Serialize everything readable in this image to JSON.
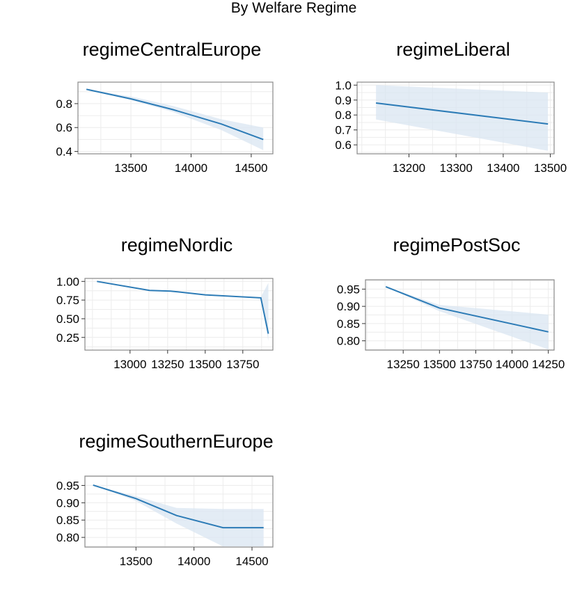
{
  "title": "By Welfare Regime",
  "colors": {
    "line": "#2c7bb6",
    "band": "#dae6f1",
    "axis": "#333333",
    "grid": "#ececec"
  },
  "chart_data": [
    {
      "type": "line",
      "title": "regimeCentralEurope",
      "xlabel": "",
      "ylabel": "",
      "x": [
        13130,
        13500,
        13850,
        14250,
        14600
      ],
      "y": [
        0.92,
        0.84,
        0.75,
        0.63,
        0.5
      ],
      "lower": [
        0.92,
        0.83,
        0.73,
        0.58,
        0.41
      ],
      "upper": [
        0.92,
        0.86,
        0.78,
        0.67,
        0.6
      ],
      "xlim": [
        13060,
        14680
      ],
      "ylim": [
        0.38,
        0.98
      ],
      "xticks": [
        13500,
        14000,
        14500
      ],
      "xtick_labels": [
        "13500",
        "14000",
        "14500"
      ],
      "yticks": [
        0.4,
        0.6,
        0.8
      ],
      "ytick_labels": [
        "0.4",
        "0.6",
        "0.8"
      ],
      "grid": true
    },
    {
      "type": "line",
      "title": "regimeLiberal",
      "xlabel": "",
      "ylabel": "",
      "x": [
        13130,
        13495
      ],
      "y": [
        0.88,
        0.74
      ],
      "lower": [
        0.77,
        0.56
      ],
      "upper": [
        1.0,
        0.95
      ],
      "xlim": [
        13090,
        13508
      ],
      "ylim": [
        0.54,
        1.02
      ],
      "xticks": [
        13200,
        13300,
        13400,
        13500
      ],
      "xtick_labels": [
        "13200",
        "13300",
        "13400",
        "13500"
      ],
      "yticks": [
        0.6,
        0.7,
        0.8,
        0.9,
        1.0
      ],
      "ytick_labels": [
        "0.6",
        "0.7",
        "0.8",
        "0.9",
        "1.0"
      ],
      "grid": true
    },
    {
      "type": "line",
      "title": "regimeNordic",
      "xlabel": "",
      "ylabel": "",
      "x": [
        12780,
        13130,
        13270,
        13500,
        13870,
        13920
      ],
      "y": [
        1.0,
        0.88,
        0.87,
        0.82,
        0.78,
        0.3
      ],
      "lower": [
        1.0,
        0.88,
        0.87,
        0.82,
        0.77,
        0.2
      ],
      "upper": [
        1.0,
        0.88,
        0.87,
        0.82,
        0.79,
        0.98
      ],
      "xlim": [
        12700,
        13950
      ],
      "ylim": [
        0.08,
        1.04
      ],
      "xticks": [
        13000,
        13250,
        13500,
        13750
      ],
      "xtick_labels": [
        "13000",
        "13250",
        "13500",
        "13750"
      ],
      "yticks": [
        0.25,
        0.5,
        0.75,
        1.0
      ],
      "ytick_labels": [
        "0.25",
        "0.50",
        "0.75",
        "1.00"
      ],
      "grid": true
    },
    {
      "type": "line",
      "title": "regimePostSoc",
      "xlabel": "",
      "ylabel": "",
      "x": [
        13130,
        13500,
        14250
      ],
      "y": [
        0.957,
        0.895,
        0.826
      ],
      "lower": [
        0.957,
        0.886,
        0.775
      ],
      "upper": [
        0.957,
        0.904,
        0.876
      ],
      "xlim": [
        12990,
        14290
      ],
      "ylim": [
        0.773,
        0.977
      ],
      "xticks": [
        13250,
        13500,
        13750,
        14000,
        14250
      ],
      "xtick_labels": [
        "13250",
        "13500",
        "13750",
        "14000",
        "14250"
      ],
      "yticks": [
        0.8,
        0.85,
        0.9,
        0.95
      ],
      "ytick_labels": [
        "0.80",
        "0.85",
        "0.90",
        "0.95"
      ],
      "grid": true
    },
    {
      "type": "line",
      "title": "regimeSouthernEurope",
      "xlabel": "",
      "ylabel": "",
      "x": [
        13130,
        13500,
        13850,
        14250,
        14600
      ],
      "y": [
        0.951,
        0.912,
        0.863,
        0.828,
        0.828
      ],
      "lower": [
        0.951,
        0.905,
        0.84,
        0.774,
        0.774
      ],
      "upper": [
        0.951,
        0.919,
        0.885,
        0.882,
        0.882
      ],
      "xlim": [
        13060,
        14680
      ],
      "ylim": [
        0.772,
        0.977
      ],
      "xticks": [
        13500,
        14000,
        14500
      ],
      "xtick_labels": [
        "13500",
        "14000",
        "14500"
      ],
      "yticks": [
        0.8,
        0.85,
        0.9,
        0.95
      ],
      "ytick_labels": [
        "0.80",
        "0.85",
        "0.90",
        "0.95"
      ],
      "grid": true
    }
  ]
}
